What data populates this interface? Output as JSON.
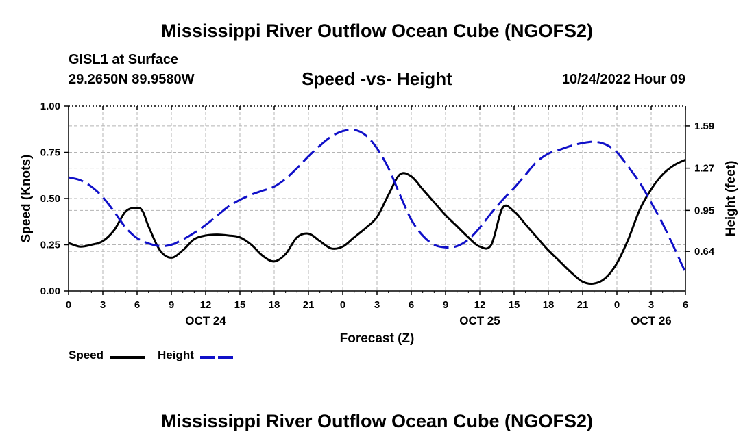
{
  "title": "Mississippi River Outflow Ocean Cube (NGOFS2)",
  "title_repeat": "Mississippi River Outflow Ocean Cube (NGOFS2)",
  "station": "GISL1 at Surface",
  "coords": "29.2650N  89.9580W",
  "subtitle": "Speed -vs- Height",
  "datetime": "10/24/2022 Hour 09",
  "legend": {
    "speed_label": "Speed",
    "height_label": "Height"
  },
  "colors": {
    "speed": "#000000",
    "height": "#1010c8",
    "grid": "#b4b4b4"
  },
  "chart_data": {
    "type": "line",
    "title": "Speed -vs- Height",
    "xlabel": "Forecast (Z)",
    "ylabel": "Speed (Knots)",
    "y2label": "Height (feet)",
    "xlim": [
      0,
      54
    ],
    "ylim": [
      0,
      1
    ],
    "y2lim": [
      0.34,
      1.74
    ],
    "x_ticks": [
      0,
      3,
      6,
      9,
      12,
      15,
      18,
      21,
      24,
      27,
      30,
      33,
      36,
      39,
      42,
      45,
      48,
      51,
      54
    ],
    "x_tick_labels": [
      "0",
      "3",
      "6",
      "9",
      "12",
      "15",
      "18",
      "21",
      "0",
      "3",
      "6",
      "9",
      "12",
      "15",
      "18",
      "21",
      "0",
      "3",
      "6"
    ],
    "y_ticks": [
      0,
      0.25,
      0.5,
      0.75,
      1.0
    ],
    "y_tick_labels": [
      "0.00",
      "0.25",
      "0.50",
      "0.75",
      "1.00"
    ],
    "y2_ticks": [
      0.64,
      0.95,
      1.27,
      1.59
    ],
    "y2_tick_labels": [
      "0.64",
      "0.95",
      "1.27",
      "1.59"
    ],
    "date_labels": [
      {
        "x": 12,
        "label": "OCT 24"
      },
      {
        "x": 36,
        "label": "OCT 25"
      },
      {
        "x": 51,
        "label": "OCT 26"
      }
    ],
    "grid": true,
    "series": [
      {
        "name": "Speed",
        "axis": "left",
        "style": "solid",
        "x": [
          0,
          1,
          2,
          3,
          4,
          5,
          6,
          6.5,
          7,
          8,
          9,
          10,
          11,
          12,
          13,
          14,
          15,
          16,
          17,
          18,
          19,
          20,
          21,
          22,
          23,
          24,
          25,
          26,
          27,
          28,
          29,
          30,
          31,
          32,
          33,
          34,
          35,
          36,
          37,
          38,
          39,
          40,
          41,
          42,
          43,
          44,
          45,
          46,
          47,
          48,
          49,
          50,
          51,
          52,
          53,
          54
        ],
        "y": [
          0.26,
          0.24,
          0.25,
          0.27,
          0.33,
          0.43,
          0.45,
          0.43,
          0.35,
          0.22,
          0.18,
          0.22,
          0.28,
          0.3,
          0.305,
          0.3,
          0.29,
          0.25,
          0.19,
          0.16,
          0.2,
          0.29,
          0.31,
          0.27,
          0.23,
          0.24,
          0.29,
          0.34,
          0.4,
          0.52,
          0.63,
          0.62,
          0.55,
          0.48,
          0.41,
          0.35,
          0.29,
          0.24,
          0.25,
          0.45,
          0.43,
          0.36,
          0.29,
          0.22,
          0.16,
          0.1,
          0.05,
          0.04,
          0.07,
          0.15,
          0.28,
          0.44,
          0.55,
          0.63,
          0.68,
          0.71
        ]
      },
      {
        "name": "Height",
        "axis": "right",
        "style": "dashed",
        "x": [
          0,
          1,
          2,
          3,
          4,
          5,
          6,
          7,
          8,
          9,
          10,
          11,
          12,
          13,
          14,
          15,
          16,
          17,
          18,
          19,
          20,
          21,
          22,
          23,
          24,
          25,
          26,
          27,
          28,
          29,
          30,
          31,
          32,
          33,
          34,
          35,
          36,
          37,
          38,
          39,
          40,
          41,
          42,
          43,
          44,
          45,
          46,
          47,
          48,
          49,
          50,
          51,
          52,
          53,
          54
        ],
        "y": [
          1.2,
          1.18,
          1.13,
          1.05,
          0.94,
          0.82,
          0.74,
          0.7,
          0.68,
          0.69,
          0.73,
          0.78,
          0.84,
          0.91,
          0.98,
          1.03,
          1.07,
          1.1,
          1.13,
          1.19,
          1.27,
          1.36,
          1.44,
          1.51,
          1.55,
          1.56,
          1.52,
          1.42,
          1.27,
          1.07,
          0.88,
          0.76,
          0.69,
          0.67,
          0.68,
          0.73,
          0.82,
          0.93,
          1.03,
          1.12,
          1.22,
          1.32,
          1.38,
          1.41,
          1.44,
          1.46,
          1.47,
          1.45,
          1.39,
          1.28,
          1.16,
          1.01,
          0.85,
          0.67,
          0.48
        ]
      }
    ]
  },
  "axis_labels": {
    "x": "Forecast (Z)",
    "y_left": "Speed (Knots)",
    "y_right": "Height (feet)"
  }
}
